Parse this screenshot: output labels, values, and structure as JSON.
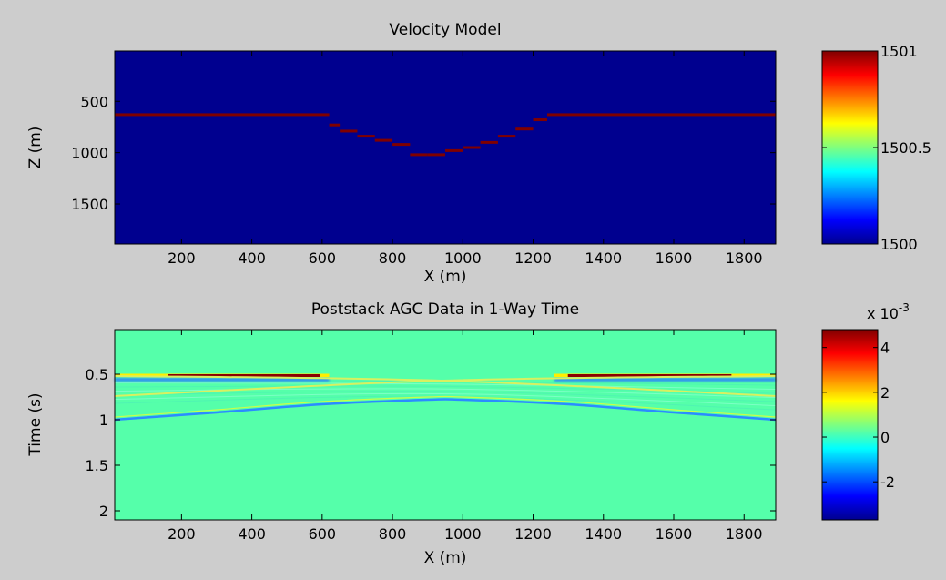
{
  "chart_data": [
    {
      "type": "heatmap",
      "title": "Velocity Model",
      "xlabel": "X (m)",
      "ylabel": "Z (m)",
      "xlim": [
        10,
        1890
      ],
      "ylim": [
        1890,
        10
      ],
      "y_reversed": true,
      "xticks": [
        200,
        400,
        600,
        800,
        1000,
        1200,
        1400,
        1600,
        1800
      ],
      "yticks": [
        500,
        1000,
        1500
      ],
      "colormap": "jet",
      "background_value": 1500,
      "clim": [
        1500,
        1501
      ],
      "colorbar": {
        "ticks": [
          1500,
          1500.5,
          1501
        ],
        "tick_labels": [
          "1500",
          "1500.5",
          "1501"
        ]
      },
      "reflector": {
        "value": 1501,
        "x": [
          10,
          620,
          650,
          700,
          750,
          800,
          850,
          900,
          950,
          1000,
          1050,
          1100,
          1150,
          1200,
          1240,
          1890
        ],
        "z": [
          630,
          630,
          730,
          790,
          840,
          880,
          920,
          1020,
          1020,
          980,
          950,
          900,
          840,
          770,
          680,
          630
        ]
      }
    },
    {
      "type": "heatmap",
      "title": "Poststack AGC Data in 1-Way Time",
      "xlabel": "X (m)",
      "ylabel": "Time (s)",
      "xlim": [
        10,
        1890
      ],
      "ylim": [
        2.1,
        0.01
      ],
      "y_reversed": true,
      "xticks": [
        200,
        400,
        600,
        800,
        1000,
        1200,
        1400,
        1600,
        1800
      ],
      "yticks": [
        0.5,
        1,
        1.5,
        2
      ],
      "colormap": "jet",
      "background_value": 0,
      "clim": [
        -0.0037,
        0.0048
      ],
      "colorbar": {
        "exponent_label": "x 10",
        "exponent": "-3",
        "ticks": [
          -0.002,
          0,
          0.002,
          0.004
        ],
        "tick_labels": [
          "-2",
          "0",
          "2",
          "4"
        ]
      },
      "events": [
        {
          "name": "flat reflection (left)",
          "x": [
            10,
            620
          ],
          "t": [
            0.51,
            0.51
          ],
          "polarity": "positive"
        },
        {
          "name": "flat reflection (right)",
          "x": [
            1260,
            1890
          ],
          "t": [
            0.51,
            0.51
          ],
          "polarity": "positive"
        },
        {
          "name": "upper cross limb A",
          "x": [
            10,
            940,
            1890
          ],
          "t": [
            0.52,
            0.57,
            0.74
          ],
          "polarity": "weak"
        },
        {
          "name": "upper cross limb B",
          "x": [
            10,
            940,
            1890
          ],
          "t": [
            0.74,
            0.57,
            0.52
          ],
          "polarity": "weak"
        },
        {
          "name": "syncline (bowl)",
          "x": [
            10,
            300,
            600,
            900,
            1000,
            1300,
            1600,
            1890
          ],
          "t": [
            1.0,
            0.92,
            0.83,
            0.78,
            0.78,
            0.83,
            0.92,
            1.0
          ],
          "polarity": "negative"
        }
      ]
    }
  ]
}
